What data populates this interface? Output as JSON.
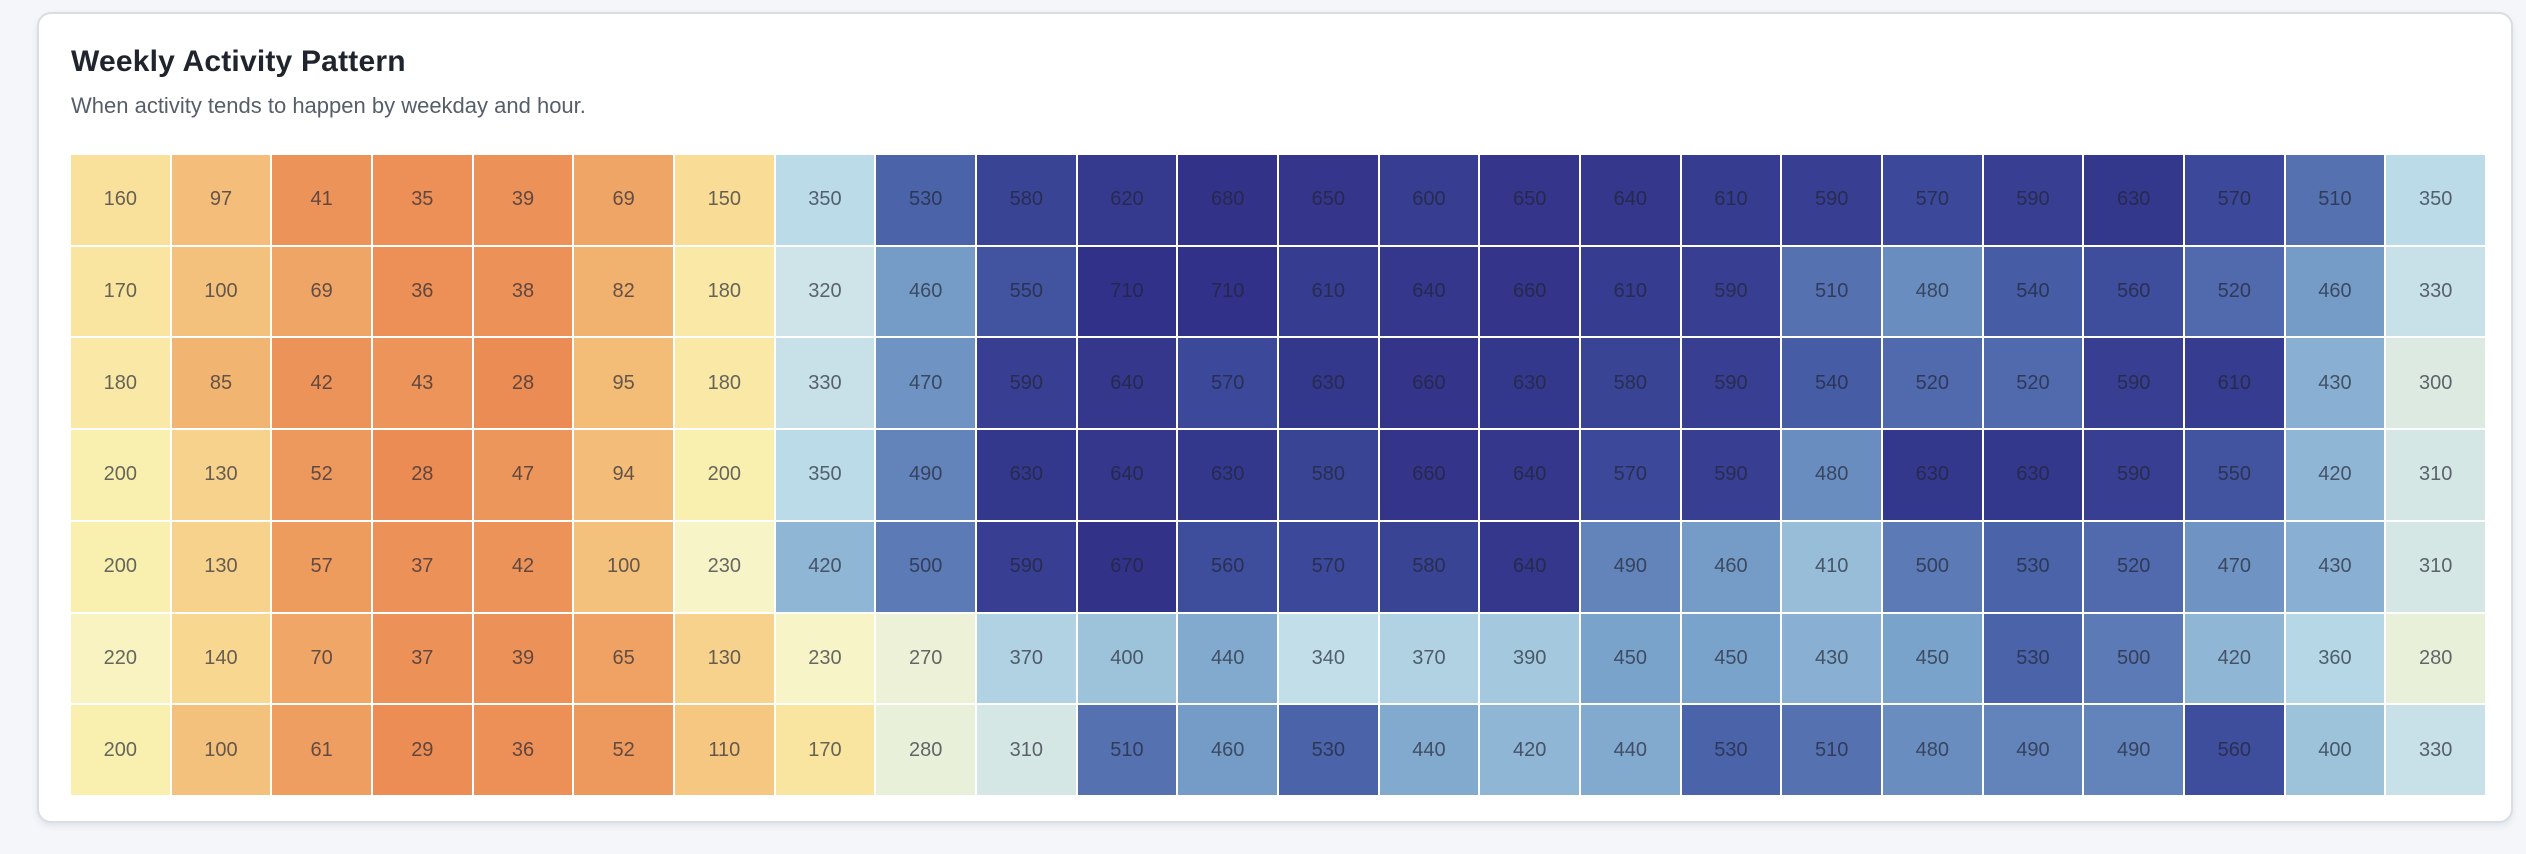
{
  "page": {
    "background_color": "#f4f6f9"
  },
  "card": {
    "title": "Weekly Activity Pattern",
    "subtitle": "When activity tends to happen by weekday and hour.",
    "background_color": "#ffffff",
    "border_color": "#d9dde4",
    "title_color": "#20242c",
    "subtitle_color": "#565e6a"
  },
  "chart_data": {
    "type": "heatmap",
    "title": "Weekly Activity Pattern",
    "subtitle": "When activity tends to happen by weekday and hour.",
    "row_count": 7,
    "col_count": 24,
    "rows": [
      [
        160,
        97,
        41,
        35,
        39,
        69,
        150,
        350,
        530,
        580,
        620,
        680,
        650,
        600,
        650,
        640,
        610,
        590,
        570,
        590,
        630,
        570,
        510,
        350
      ],
      [
        170,
        100,
        69,
        36,
        38,
        82,
        180,
        320,
        460,
        550,
        710,
        710,
        610,
        640,
        660,
        610,
        590,
        510,
        480,
        540,
        560,
        520,
        460,
        330
      ],
      [
        180,
        85,
        42,
        43,
        28,
        95,
        180,
        330,
        470,
        590,
        640,
        570,
        630,
        660,
        630,
        580,
        590,
        540,
        520,
        520,
        590,
        610,
        430,
        300
      ],
      [
        200,
        130,
        52,
        28,
        47,
        94,
        200,
        350,
        490,
        630,
        640,
        630,
        580,
        660,
        640,
        570,
        590,
        480,
        630,
        630,
        590,
        550,
        420,
        310
      ],
      [
        200,
        130,
        57,
        37,
        42,
        100,
        230,
        420,
        500,
        590,
        670,
        560,
        570,
        580,
        640,
        490,
        460,
        410,
        500,
        530,
        520,
        470,
        430,
        310
      ],
      [
        220,
        140,
        70,
        37,
        39,
        65,
        130,
        230,
        270,
        370,
        400,
        440,
        340,
        370,
        390,
        450,
        450,
        430,
        450,
        530,
        500,
        420,
        360,
        280
      ],
      [
        200,
        100,
        61,
        29,
        36,
        52,
        110,
        170,
        280,
        310,
        510,
        460,
        530,
        440,
        420,
        440,
        530,
        510,
        480,
        490,
        490,
        560,
        400,
        330
      ]
    ],
    "value_min": 28,
    "value_max": 710,
    "grid_gap_color": "#ffffff",
    "cell_text_color": "rgba(33,36,50,0.68)",
    "color_stops": [
      [
        28,
        "#eb8c55"
      ],
      [
        60,
        "#ee9d5f"
      ],
      [
        100,
        "#f4c17c"
      ],
      [
        150,
        "#f9dd96"
      ],
      [
        200,
        "#f9f0b0"
      ],
      [
        240,
        "#f6f5cf"
      ],
      [
        280,
        "#e8f0da"
      ],
      [
        320,
        "#cfe4e8"
      ],
      [
        350,
        "#bbdbe8"
      ],
      [
        390,
        "#a4c9de"
      ],
      [
        430,
        "#89b0d2"
      ],
      [
        450,
        "#7aa3cb"
      ],
      [
        480,
        "#6a8dc0"
      ],
      [
        510,
        "#5571b0"
      ],
      [
        530,
        "#4a63a9"
      ],
      [
        560,
        "#3e4d9c"
      ],
      [
        590,
        "#383f92"
      ],
      [
        630,
        "#34388d"
      ],
      [
        670,
        "#333289"
      ],
      [
        710,
        "#313189"
      ]
    ]
  }
}
